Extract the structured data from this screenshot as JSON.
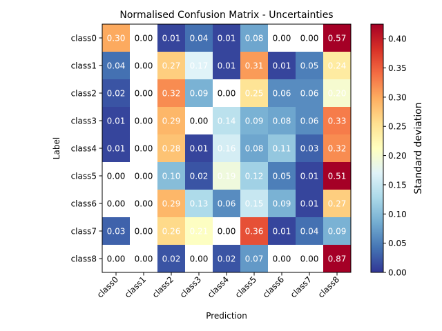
{
  "chart_data": {
    "type": "heatmap",
    "title": "Normalised Confusion Matrix - Uncertainties",
    "xlabel": "Prediction",
    "ylabel": "Label",
    "x_categories": [
      "class0",
      "class1",
      "class2",
      "class3",
      "class4",
      "class5",
      "class6",
      "class7",
      "class8"
    ],
    "y_categories": [
      "class0",
      "class1",
      "class2",
      "class3",
      "class4",
      "class5",
      "class6",
      "class7",
      "class8"
    ],
    "values": [
      [
        0.3,
        0.0,
        0.01,
        0.04,
        0.01,
        0.08,
        0.0,
        0.0,
        0.57
      ],
      [
        0.04,
        0.0,
        0.27,
        0.17,
        0.01,
        0.31,
        0.01,
        0.05,
        0.24
      ],
      [
        0.02,
        0.0,
        0.32,
        0.09,
        0.0,
        0.25,
        0.06,
        0.06,
        0.2
      ],
      [
        0.01,
        0.0,
        0.29,
        0.0,
        0.14,
        0.09,
        0.08,
        0.06,
        0.33
      ],
      [
        0.01,
        0.0,
        0.28,
        0.01,
        0.16,
        0.08,
        0.11,
        0.03,
        0.32
      ],
      [
        0.0,
        0.0,
        0.1,
        0.02,
        0.19,
        0.12,
        0.05,
        0.01,
        0.51
      ],
      [
        0.0,
        0.0,
        0.29,
        0.13,
        0.06,
        0.15,
        0.09,
        0.01,
        0.27
      ],
      [
        0.03,
        0.0,
        0.26,
        0.21,
        0.0,
        0.36,
        0.01,
        0.04,
        0.09
      ],
      [
        0.0,
        0.0,
        0.02,
        0.0,
        0.02,
        0.07,
        0.0,
        0.0,
        0.87
      ]
    ],
    "colormap": "RdYlBu_r",
    "color_range": [
      0.0,
      0.425
    ],
    "colorbar_label": "Standard deviation",
    "colorbar_ticks": [
      0.0,
      0.05,
      0.1,
      0.15,
      0.2,
      0.25,
      0.3,
      0.35,
      0.4
    ],
    "colorbar_tick_labels": [
      "0.00",
      "0.05",
      "0.10",
      "0.15",
      "0.20",
      "0.25",
      "0.30",
      "0.35",
      "0.40"
    ]
  }
}
